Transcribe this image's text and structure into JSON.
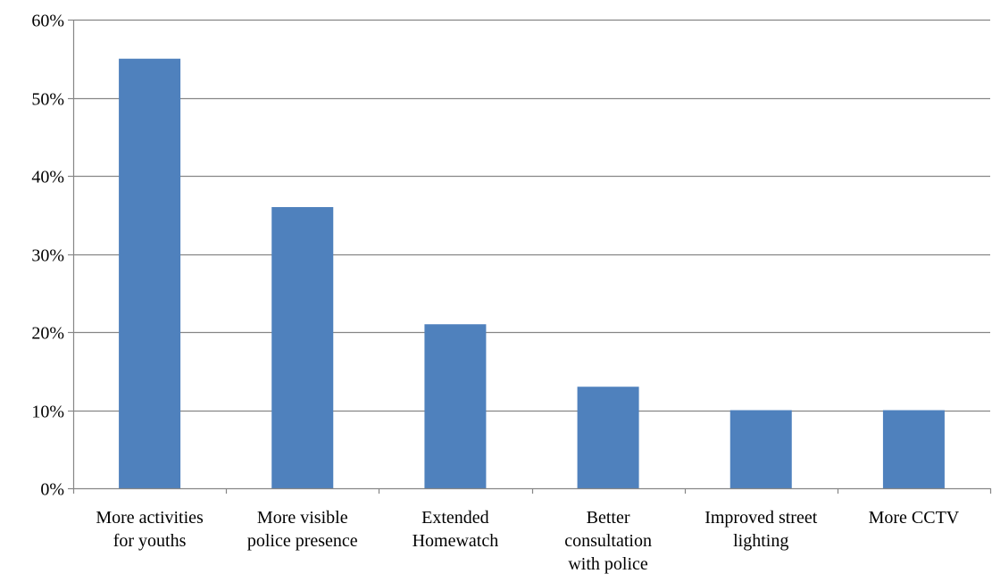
{
  "chart_data": {
    "type": "bar",
    "title": "",
    "xlabel": "",
    "ylabel": "",
    "categories": [
      [
        "More activities",
        "for youths"
      ],
      [
        "More visible",
        "police presence"
      ],
      [
        "Extended",
        "Homewatch"
      ],
      [
        "Better",
        "consultation",
        "with police"
      ],
      [
        "Improved street",
        "lighting"
      ],
      [
        "More CCTV"
      ]
    ],
    "values": [
      55,
      36,
      21,
      13,
      10,
      10
    ],
    "ylim": [
      0,
      60
    ],
    "yticks": [
      0,
      10,
      20,
      30,
      40,
      50,
      60
    ],
    "ytick_labels": [
      "0%",
      "10%",
      "20%",
      "30%",
      "40%",
      "50%",
      "60%"
    ],
    "grid": true,
    "legend": "none",
    "colors": {
      "bar": "#4F81BD",
      "grid": "#868686",
      "axis": "#868686"
    }
  }
}
